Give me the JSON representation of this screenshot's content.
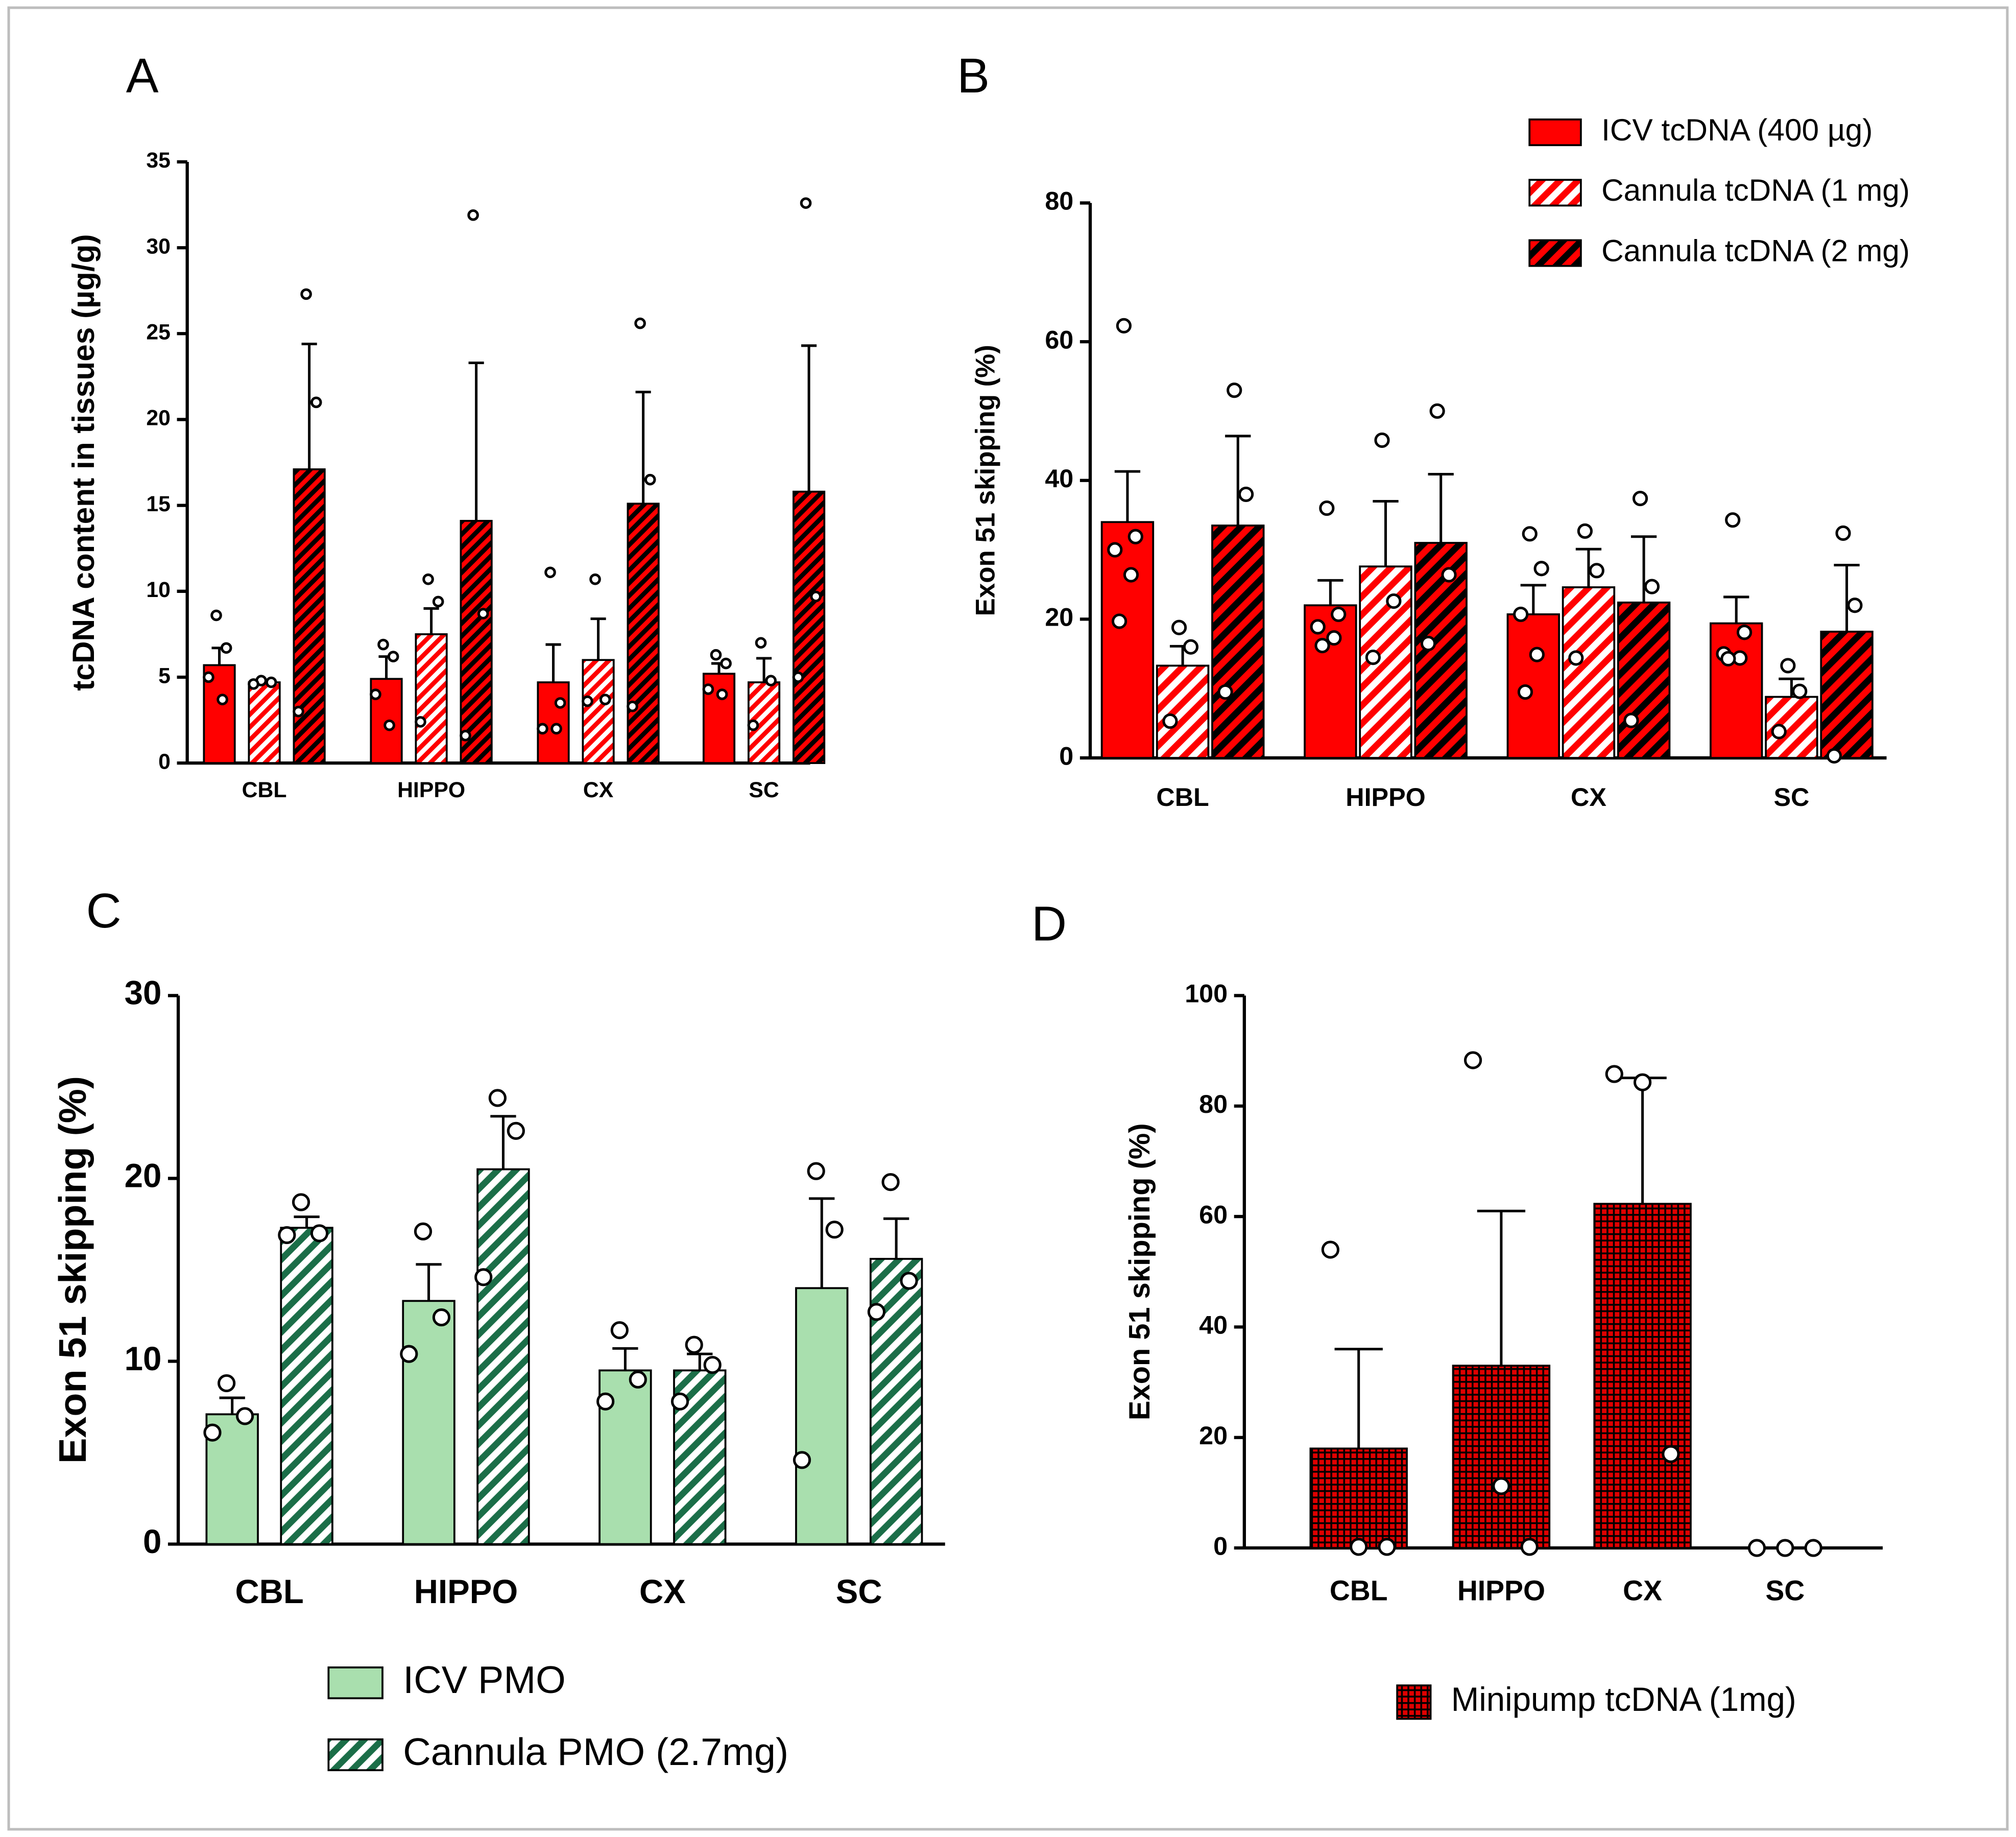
{
  "chart_data": [
    {
      "type": "bar",
      "panel": "A",
      "ylabel": "tcDNA content in tissues (µg/g)",
      "categories": [
        "CBL",
        "HIPPO",
        "CX",
        "SC"
      ],
      "ylim": [
        0,
        35
      ],
      "yticks": [
        0,
        5,
        10,
        15,
        20,
        25,
        30,
        35
      ],
      "series": [
        {
          "color": "#ff0000",
          "pattern": "solid",
          "pattern_color": "#ff0000",
          "values": [
            5.7,
            4.9,
            4.7,
            5.2
          ],
          "errors": [
            1.0,
            1.3,
            2.2,
            0.6
          ],
          "points": [
            [
              8.6,
              6.7,
              5.0,
              3.7
            ],
            [
              6.9,
              6.2,
              4.0,
              2.2
            ],
            [
              11.1,
              3.5,
              2.0,
              2.0
            ],
            [
              6.3,
              5.8,
              4.3,
              4.0
            ]
          ]
        },
        {
          "color": "#ff0000",
          "pattern": "striped",
          "pattern_color": "#ffffff",
          "values": [
            4.7,
            7.5,
            6.0,
            4.7
          ],
          "errors": [
            0.1,
            1.5,
            2.4,
            1.4
          ],
          "points": [
            [
              4.8,
              4.7,
              4.6
            ],
            [
              10.7,
              9.4,
              2.4
            ],
            [
              10.7,
              3.7,
              3.6
            ],
            [
              7.0,
              4.8,
              2.2
            ]
          ]
        },
        {
          "color": "#ff0000",
          "pattern": "striped",
          "pattern_color": "#000000",
          "values": [
            17.1,
            14.1,
            15.1,
            15.8
          ],
          "errors": [
            7.3,
            9.2,
            6.5,
            8.5
          ],
          "points": [
            [
              27.3,
              21.0,
              3.0
            ],
            [
              31.9,
              8.7,
              1.6
            ],
            [
              25.6,
              16.5,
              3.3
            ],
            [
              32.6,
              9.7,
              5.0
            ]
          ]
        }
      ]
    },
    {
      "type": "bar",
      "panel": "B",
      "ylabel": "Exon 51 skipping (%)",
      "legend": "upper right",
      "categories": [
        "CBL",
        "HIPPO",
        "CX",
        "SC"
      ],
      "ylim": [
        0,
        80
      ],
      "yticks": [
        0,
        20,
        40,
        60,
        80
      ],
      "series": [
        {
          "name": "ICV tcDNA (400 µg)",
          "color": "#ff0000",
          "pattern": "solid",
          "pattern_color": "#ff0000",
          "values": [
            34.0,
            22.0,
            20.7,
            19.4
          ],
          "errors": [
            7.3,
            3.6,
            4.2,
            3.8
          ],
          "points": [
            [
              62.3,
              31.9,
              30.0,
              26.4,
              19.7
            ],
            [
              36.0,
              20.7,
              18.9,
              17.3,
              16.2
            ],
            [
              32.3,
              27.3,
              20.7,
              14.9,
              9.5
            ],
            [
              34.3,
              18.1,
              15.0,
              14.4,
              14.3
            ]
          ]
        },
        {
          "name": "Cannula tcDNA (1 mg)",
          "color": "#ff0000",
          "pattern": "striped",
          "pattern_color": "#ffffff",
          "values": [
            13.3,
            27.6,
            24.6,
            8.8
          ],
          "errors": [
            2.8,
            9.4,
            5.5,
            2.6
          ],
          "points": [
            [
              18.8,
              16.0,
              5.3
            ],
            [
              45.8,
              22.6,
              14.5
            ],
            [
              32.7,
              27.0,
              14.4
            ],
            [
              13.3,
              9.6,
              3.8
            ]
          ]
        },
        {
          "name": "Cannula tcDNA (2 mg)",
          "color": "#ff0000",
          "pattern": "striped",
          "pattern_color": "#000000",
          "values": [
            33.5,
            31.0,
            22.4,
            18.2
          ],
          "errors": [
            12.9,
            9.9,
            9.5,
            9.6
          ],
          "points": [
            [
              53.0,
              38.0,
              9.5
            ],
            [
              50.0,
              26.4,
              16.5
            ],
            [
              37.4,
              24.7,
              5.4
            ],
            [
              32.4,
              22.0,
              0.3
            ]
          ]
        }
      ]
    },
    {
      "type": "bar",
      "panel": "C",
      "ylabel": "Exon 51 skipping (%)",
      "legend": "bottom",
      "categories": [
        "CBL",
        "HIPPO",
        "CX",
        "SC"
      ],
      "ylim": [
        0,
        30
      ],
      "yticks": [
        0,
        10,
        20,
        30
      ],
      "series": [
        {
          "name": "ICV PMO",
          "color": "#a9dfae",
          "pattern": "solid",
          "pattern_color": "#a9dfae",
          "values": [
            7.1,
            13.3,
            9.5,
            14.0
          ],
          "errors": [
            0.9,
            2.0,
            1.2,
            4.9
          ],
          "points": [
            [
              8.8,
              7.0,
              6.1
            ],
            [
              17.1,
              12.4,
              10.4
            ],
            [
              11.7,
              9.0,
              7.8
            ],
            [
              20.4,
              17.2,
              4.6
            ]
          ]
        },
        {
          "name": "Cannula PMO (2.7mg)",
          "color": "#1b6e48",
          "pattern": "striped",
          "pattern_color": "#ffffff",
          "values": [
            17.3,
            20.5,
            9.5,
            15.6
          ],
          "errors": [
            0.6,
            2.9,
            0.9,
            2.2
          ],
          "points": [
            [
              18.7,
              17.0,
              16.9
            ],
            [
              24.4,
              22.6,
              14.6
            ],
            [
              10.9,
              9.8,
              7.8
            ],
            [
              19.8,
              14.4,
              12.7
            ]
          ]
        }
      ]
    },
    {
      "type": "bar",
      "panel": "D",
      "ylabel": "Exon 51 skipping (%)",
      "legend": "bottom",
      "categories": [
        "CBL",
        "HIPPO",
        "CX",
        "SC"
      ],
      "ylim": [
        0,
        100
      ],
      "yticks": [
        0,
        20,
        40,
        60,
        80,
        100
      ],
      "series": [
        {
          "name": "Minipump tcDNA (1mg)",
          "color": "#e00000",
          "pattern": "checkered",
          "pattern_color": "#000000",
          "values": [
            18.0,
            33.0,
            62.3,
            0
          ],
          "errors": [
            18.0,
            28.0,
            22.8,
            0
          ],
          "points": [
            [
              54.0,
              0.2,
              0.2
            ],
            [
              88.3,
              11.2,
              0.2
            ],
            [
              85.8,
              84.3,
              17.0
            ],
            [
              0,
              0,
              0
            ]
          ]
        }
      ]
    }
  ]
}
